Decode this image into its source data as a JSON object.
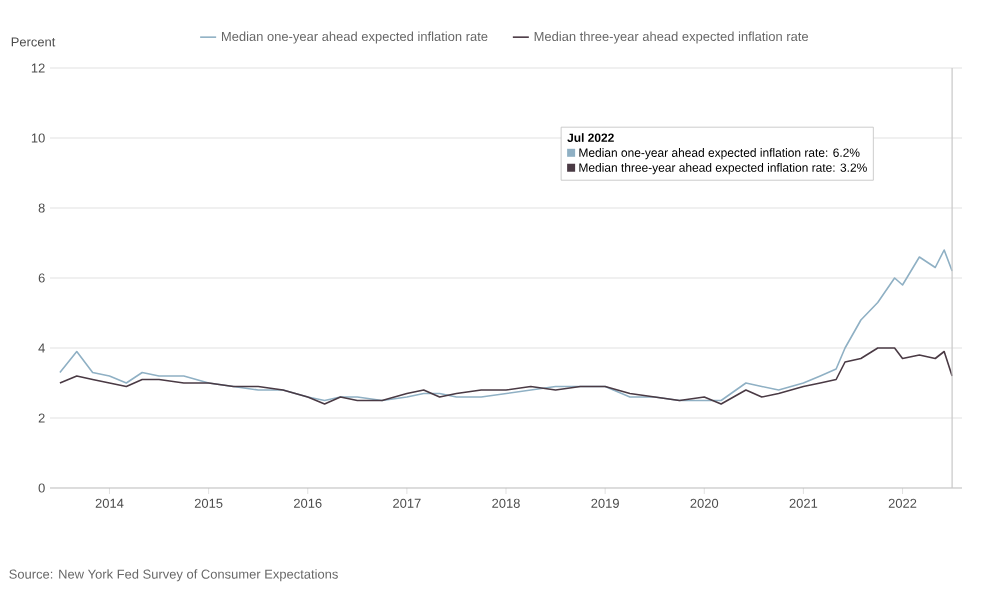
{
  "chart_data": {
    "type": "line",
    "ylabel": "Percent",
    "x": [
      2013.5,
      2013.67,
      2013.83,
      2014.0,
      2014.17,
      2014.33,
      2014.5,
      2014.75,
      2015.0,
      2015.25,
      2015.5,
      2015.75,
      2016.0,
      2016.17,
      2016.33,
      2016.5,
      2016.75,
      2017.0,
      2017.17,
      2017.33,
      2017.5,
      2017.75,
      2018.0,
      2018.25,
      2018.5,
      2018.75,
      2019.0,
      2019.25,
      2019.5,
      2019.75,
      2020.0,
      2020.17,
      2020.42,
      2020.58,
      2020.75,
      2021.0,
      2021.17,
      2021.33,
      2021.42,
      2021.58,
      2021.75,
      2021.92,
      2022.0,
      2022.17,
      2022.33,
      2022.42,
      2022.5
    ],
    "series": [
      {
        "name": "Median one-year ahead expected inflation rate",
        "color": "#8fb0c4",
        "values": [
          3.3,
          3.9,
          3.3,
          3.2,
          3.0,
          3.3,
          3.2,
          3.2,
          3.0,
          2.9,
          2.8,
          2.8,
          2.6,
          2.5,
          2.6,
          2.6,
          2.5,
          2.6,
          2.7,
          2.7,
          2.6,
          2.6,
          2.7,
          2.8,
          2.9,
          2.9,
          2.9,
          2.6,
          2.6,
          2.5,
          2.5,
          2.5,
          3.0,
          2.9,
          2.8,
          3.0,
          3.2,
          3.4,
          4.0,
          4.8,
          5.3,
          6.0,
          5.8,
          6.6,
          6.3,
          6.8,
          6.2
        ]
      },
      {
        "name": "Median three-year ahead expected inflation rate",
        "color": "#4a3a44",
        "values": [
          3.0,
          3.2,
          3.1,
          3.0,
          2.9,
          3.1,
          3.1,
          3.0,
          3.0,
          2.9,
          2.9,
          2.8,
          2.6,
          2.4,
          2.6,
          2.5,
          2.5,
          2.7,
          2.8,
          2.6,
          2.7,
          2.8,
          2.8,
          2.9,
          2.8,
          2.9,
          2.9,
          2.7,
          2.6,
          2.5,
          2.6,
          2.4,
          2.8,
          2.6,
          2.7,
          2.9,
          3.0,
          3.1,
          3.6,
          3.7,
          4.0,
          4.0,
          3.7,
          3.8,
          3.7,
          3.9,
          3.2
        ]
      }
    ],
    "xlim": [
      2013.4,
      2022.6
    ],
    "xticks": [
      2014,
      2015,
      2016,
      2017,
      2018,
      2019,
      2020,
      2021,
      2022
    ],
    "ylim": [
      0,
      12
    ],
    "yticks": [
      0,
      2,
      4,
      6,
      8,
      10,
      12
    ],
    "grid": "y",
    "legend": "top",
    "ref_lines": [
      {
        "axis": "x",
        "value": 2022.5,
        "color": "#c8c8c8"
      }
    ],
    "annotations": [
      "Jul 2022",
      "Median one-year ahead expected inflation rate: 6.2%",
      "Median three-year ahead expected inflation rate: 3.2%",
      "Source: New York Fed Survey of Consumer Expectations"
    ]
  }
}
